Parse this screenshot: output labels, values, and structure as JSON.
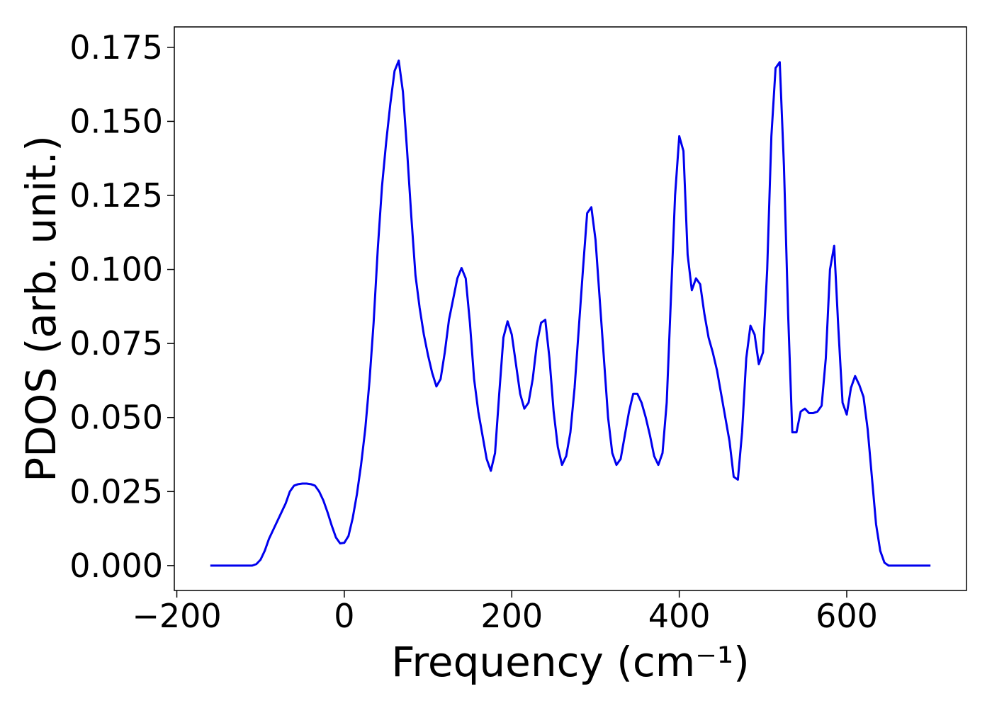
{
  "chart_data": {
    "type": "line",
    "xlabel": "Frequency (cm⁻¹)",
    "ylabel": "PDOS (arb. unit.)",
    "xlim": [
      -203,
      743
    ],
    "ylim": [
      -0.0084,
      0.1819
    ],
    "xticks": [
      {
        "value": -200,
        "label": "−200"
      },
      0,
      200,
      400,
      600
    ],
    "yticks": [
      {
        "value": 0,
        "label": "0.000"
      },
      {
        "value": 0.025,
        "label": "0.025"
      },
      {
        "value": 0.05,
        "label": "0.050"
      },
      {
        "value": 0.075,
        "label": "0.075"
      },
      {
        "value": 0.1,
        "label": "0.100"
      },
      {
        "value": 0.125,
        "label": "0.125"
      },
      {
        "value": 0.15,
        "label": "0.150"
      },
      {
        "value": 0.175,
        "label": "0.175"
      }
    ],
    "x": [
      -160,
      -110,
      -105,
      -100,
      -95,
      -90,
      -85,
      -80,
      -75,
      -70,
      -65,
      -60,
      -55,
      -50,
      -45,
      -40,
      -35,
      -30,
      -25,
      -20,
      -15,
      -10,
      -5,
      0,
      5,
      10,
      15,
      20,
      25,
      30,
      35,
      40,
      45,
      50,
      55,
      60,
      65,
      70,
      75,
      80,
      85,
      90,
      95,
      100,
      105,
      110,
      115,
      120,
      125,
      130,
      135,
      140,
      145,
      150,
      155,
      160,
      165,
      170,
      175,
      180,
      185,
      190,
      195,
      200,
      205,
      210,
      215,
      220,
      225,
      230,
      235,
      240,
      245,
      250,
      255,
      260,
      265,
      270,
      275,
      280,
      285,
      290,
      295,
      300,
      305,
      310,
      315,
      320,
      325,
      330,
      335,
      340,
      345,
      350,
      355,
      360,
      365,
      370,
      375,
      380,
      385,
      390,
      395,
      400,
      405,
      410,
      415,
      420,
      425,
      430,
      435,
      440,
      445,
      450,
      455,
      460,
      465,
      470,
      475,
      480,
      485,
      490,
      495,
      500,
      505,
      510,
      515,
      520,
      525,
      530,
      535,
      540,
      545,
      550,
      555,
      560,
      565,
      570,
      575,
      580,
      585,
      590,
      595,
      600,
      605,
      610,
      615,
      620,
      625,
      630,
      635,
      640,
      645,
      650,
      700
    ],
    "series": [
      {
        "color": "#0000ee",
        "values": [
          0,
          0,
          0.0005,
          0.002,
          0.005,
          0.009,
          0.012,
          0.015,
          0.018,
          0.021,
          0.025,
          0.027,
          0.0275,
          0.0277,
          0.0277,
          0.0275,
          0.027,
          0.025,
          0.022,
          0.018,
          0.0135,
          0.0095,
          0.0075,
          0.0077,
          0.01,
          0.016,
          0.024,
          0.034,
          0.046,
          0.062,
          0.082,
          0.107,
          0.128,
          0.143,
          0.156,
          0.167,
          0.1705,
          0.16,
          0.14,
          0.118,
          0.098,
          0.087,
          0.078,
          0.071,
          0.065,
          0.0605,
          0.063,
          0.072,
          0.083,
          0.09,
          0.097,
          0.1005,
          0.097,
          0.082,
          0.063,
          0.052,
          0.044,
          0.036,
          0.032,
          0.038,
          0.058,
          0.077,
          0.0825,
          0.078,
          0.068,
          0.058,
          0.053,
          0.055,
          0.063,
          0.075,
          0.082,
          0.083,
          0.07,
          0.052,
          0.04,
          0.034,
          0.037,
          0.045,
          0.06,
          0.08,
          0.1,
          0.119,
          0.121,
          0.11,
          0.09,
          0.07,
          0.05,
          0.038,
          0.034,
          0.036,
          0.044,
          0.052,
          0.058,
          0.058,
          0.055,
          0.05,
          0.044,
          0.037,
          0.034,
          0.038,
          0.055,
          0.09,
          0.125,
          0.145,
          0.14,
          0.105,
          0.093,
          0.097,
          0.095,
          0.085,
          0.077,
          0.072,
          0.066,
          0.058,
          0.05,
          0.042,
          0.03,
          0.029,
          0.045,
          0.07,
          0.081,
          0.078,
          0.068,
          0.072,
          0.1,
          0.145,
          0.168,
          0.17,
          0.135,
          0.085,
          0.045,
          0.045,
          0.052,
          0.053,
          0.0515,
          0.0515,
          0.052,
          0.054,
          0.07,
          0.1,
          0.108,
          0.08,
          0.055,
          0.051,
          0.06,
          0.064,
          0.061,
          0.057,
          0.046,
          0.03,
          0.014,
          0.005,
          0.001,
          0,
          0
        ]
      }
    ]
  }
}
